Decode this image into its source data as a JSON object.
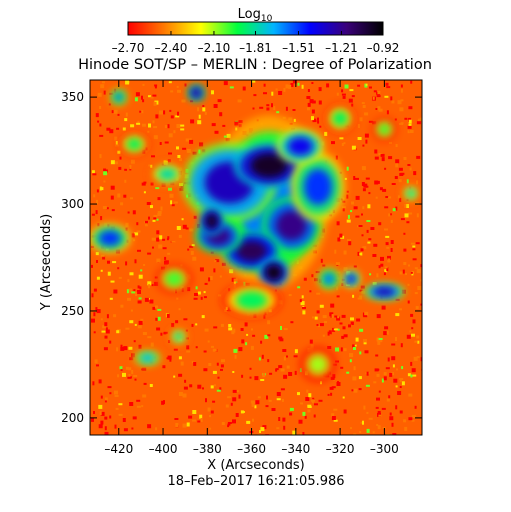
{
  "chart_data": {
    "type": "heatmap",
    "title": "Hinode SOT/SP – MERLIN : Degree of Polarization",
    "xlabel": "X (Arcseconds)",
    "ylabel": "Y (Arcseconds)",
    "footer": "18–Feb–2017 16:21:05.986",
    "xlim": [
      -433,
      -283
    ],
    "ylim": [
      192,
      358
    ],
    "x_ticks": [
      {
        "value": -420,
        "label": "–420"
      },
      {
        "value": -400,
        "label": "–400"
      },
      {
        "value": -380,
        "label": "–380"
      },
      {
        "value": -360,
        "label": "–360"
      },
      {
        "value": -340,
        "label": "–340"
      },
      {
        "value": -320,
        "label": "–320"
      },
      {
        "value": -300,
        "label": "–300"
      }
    ],
    "y_ticks": [
      {
        "value": 200,
        "label": "200"
      },
      {
        "value": 250,
        "label": "250"
      },
      {
        "value": 300,
        "label": "300"
      },
      {
        "value": 350,
        "label": "350"
      }
    ],
    "colorbar": {
      "title_main": "Log",
      "title_sub": "10",
      "range": [
        -2.7,
        -0.92
      ],
      "ticks": [
        {
          "value": -2.7,
          "label": "–2.70"
        },
        {
          "value": -2.4,
          "label": "–2.40"
        },
        {
          "value": -2.1,
          "label": "–2.10"
        },
        {
          "value": -1.81,
          "label": "–1.81"
        },
        {
          "value": -1.51,
          "label": "–1.51"
        },
        {
          "value": -1.21,
          "label": "–1.21"
        },
        {
          "value": -0.92,
          "label": "–0.92"
        }
      ],
      "colors": [
        "#ff0000",
        "#ff7a00",
        "#ffff00",
        "#00ff40",
        "#00b4ff",
        "#0000ff",
        "#3a007a",
        "#000000"
      ]
    },
    "background_level": -2.5,
    "regions": [
      {
        "x": -352,
        "y": 301,
        "rx": 20,
        "ry": 30,
        "level": -1.6
      },
      {
        "x": -370,
        "y": 310,
        "rx": 16,
        "ry": 14,
        "level": -1.3
      },
      {
        "x": -352,
        "y": 318,
        "rx": 12,
        "ry": 8,
        "level": -1.0
      },
      {
        "x": -342,
        "y": 290,
        "rx": 10,
        "ry": 10,
        "level": -1.2
      },
      {
        "x": -360,
        "y": 278,
        "rx": 10,
        "ry": 7,
        "level": -1.1
      },
      {
        "x": -350,
        "y": 268,
        "rx": 5,
        "ry": 5,
        "level": -0.95
      },
      {
        "x": -375,
        "y": 285,
        "rx": 8,
        "ry": 6,
        "level": -1.2
      },
      {
        "x": -330,
        "y": 308,
        "rx": 9,
        "ry": 12,
        "level": -1.5
      },
      {
        "x": -338,
        "y": 327,
        "rx": 8,
        "ry": 6,
        "level": -1.4
      },
      {
        "x": -378,
        "y": 292,
        "rx": 4,
        "ry": 5,
        "level": -1.0
      },
      {
        "x": -360,
        "y": 255,
        "rx": 10,
        "ry": 6,
        "level": -1.9
      },
      {
        "x": -398,
        "y": 314,
        "rx": 6,
        "ry": 4,
        "level": -1.8
      },
      {
        "x": -424,
        "y": 284,
        "rx": 7,
        "ry": 5,
        "level": -1.5
      },
      {
        "x": -300,
        "y": 259,
        "rx": 7,
        "ry": 3,
        "level": -1.3
      },
      {
        "x": -325,
        "y": 265,
        "rx": 4,
        "ry": 4,
        "level": -1.6
      },
      {
        "x": -385,
        "y": 352,
        "rx": 3,
        "ry": 3,
        "level": -1.2
      },
      {
        "x": -413,
        "y": 328,
        "rx": 5,
        "ry": 4,
        "level": -1.9
      },
      {
        "x": -420,
        "y": 350,
        "rx": 3,
        "ry": 3,
        "level": -1.6
      },
      {
        "x": -407,
        "y": 228,
        "rx": 5,
        "ry": 3,
        "level": -1.7
      },
      {
        "x": -393,
        "y": 238,
        "rx": 3,
        "ry": 3,
        "level": -1.8
      },
      {
        "x": -320,
        "y": 340,
        "rx": 5,
        "ry": 5,
        "level": -1.9
      },
      {
        "x": -315,
        "y": 265,
        "rx": 3,
        "ry": 3,
        "level": -1.4
      },
      {
        "x": -288,
        "y": 305,
        "rx": 3,
        "ry": 3,
        "level": -1.8
      },
      {
        "x": -300,
        "y": 335,
        "rx": 4,
        "ry": 4,
        "level": -2.0
      },
      {
        "x": -395,
        "y": 265,
        "rx": 6,
        "ry": 5,
        "level": -2.0
      },
      {
        "x": -330,
        "y": 225,
        "rx": 6,
        "ry": 6,
        "level": -2.1
      }
    ]
  }
}
